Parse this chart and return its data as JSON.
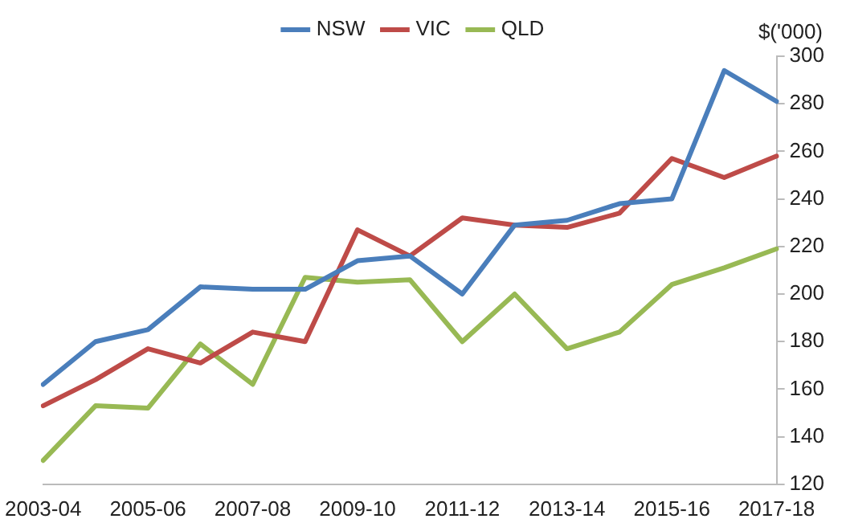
{
  "chart_data": {
    "type": "line",
    "ylabel": "$('000)",
    "categories": [
      "2003-04",
      null,
      "2005-06",
      null,
      "2007-08",
      null,
      "2009-10",
      null,
      "2011-12",
      null,
      "2013-14",
      null,
      "2015-16",
      null,
      "2017-18"
    ],
    "series": [
      {
        "name": "NSW",
        "color": "#4a7ebb",
        "values": [
          162,
          180,
          185,
          203,
          202,
          202,
          214,
          216,
          200,
          229,
          231,
          238,
          240,
          294,
          281
        ]
      },
      {
        "name": "VIC",
        "color": "#be4b48",
        "values": [
          153,
          164,
          177,
          171,
          184,
          180,
          227,
          216,
          232,
          229,
          228,
          234,
          257,
          249,
          258
        ]
      },
      {
        "name": "QLD",
        "color": "#98b954",
        "values": [
          130,
          153,
          152,
          179,
          162,
          207,
          205,
          206,
          180,
          200,
          177,
          184,
          204,
          211,
          219
        ]
      }
    ],
    "ylim": [
      120,
      300
    ],
    "yticks": [
      120,
      140,
      160,
      180,
      200,
      220,
      240,
      260,
      280,
      300
    ],
    "grid": false,
    "legend": "top",
    "marker": "none",
    "line_style": "solid"
  }
}
